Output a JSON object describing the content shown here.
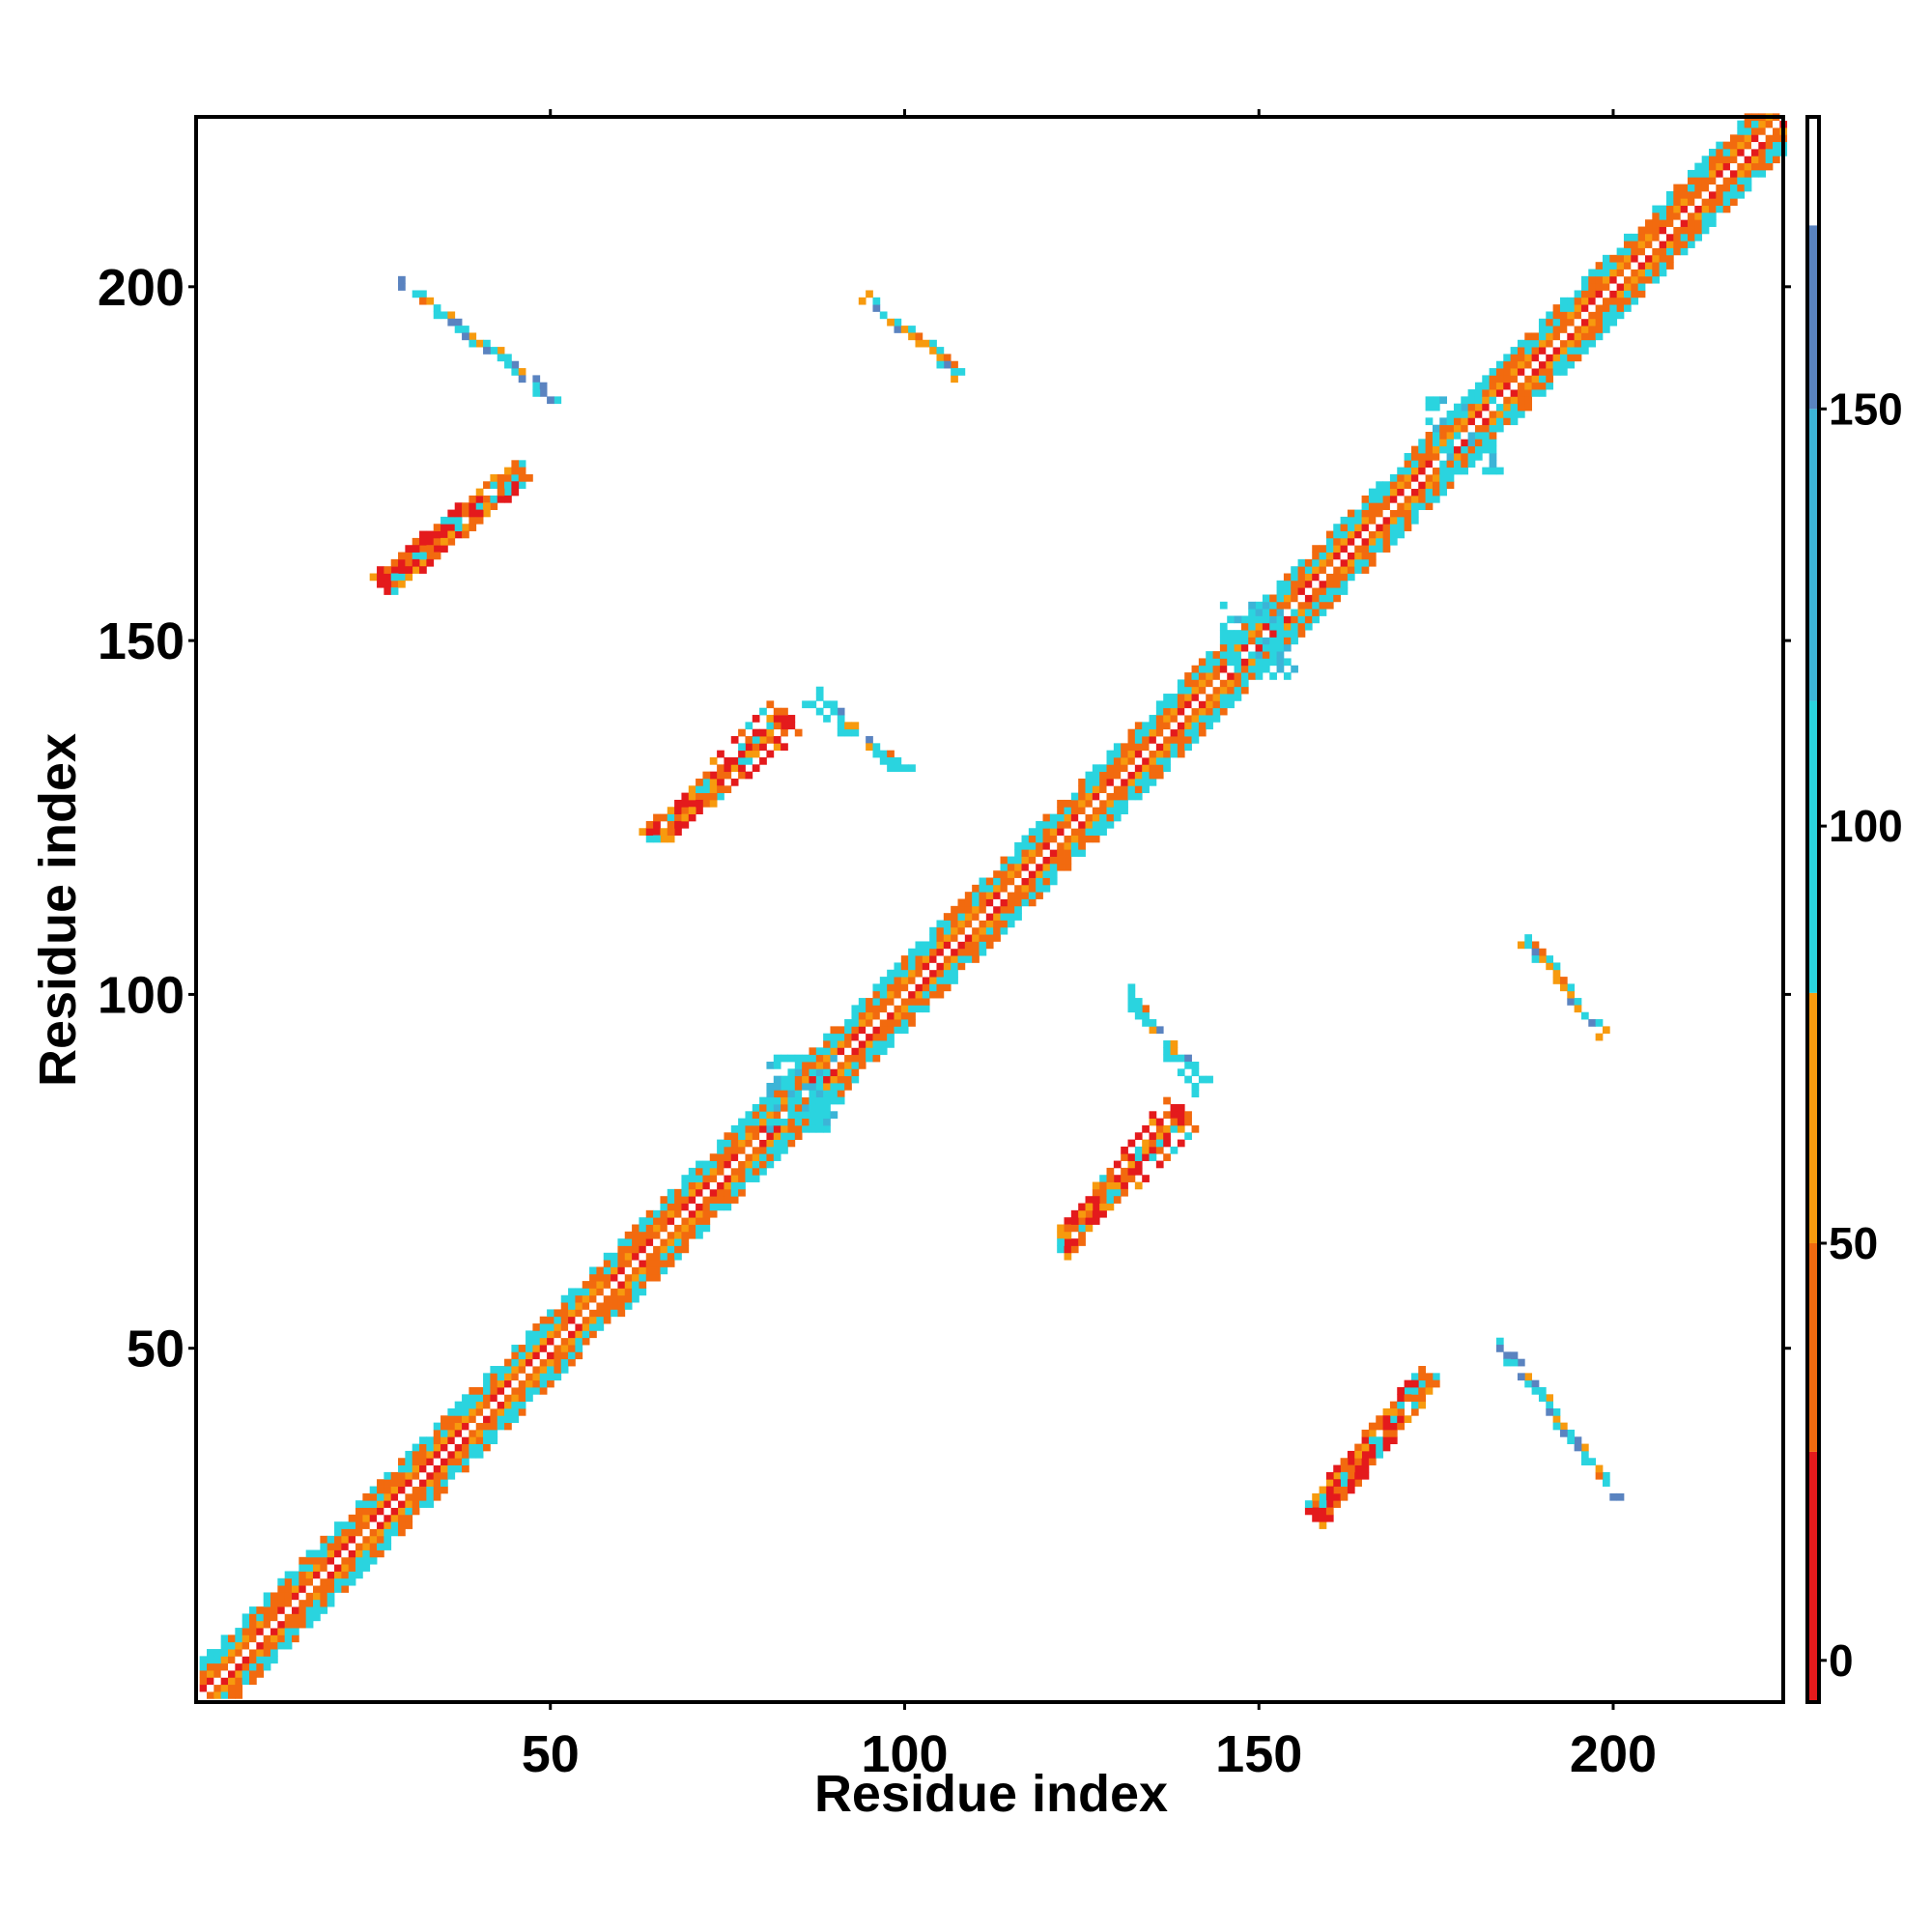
{
  "chart_data": {
    "type": "heatmap",
    "title": "",
    "xlabel": "Residue index",
    "ylabel": "Residue index",
    "xlim": [
      1,
      224
    ],
    "ylim": [
      1,
      224
    ],
    "x_ticks": [
      50,
      100,
      150,
      200
    ],
    "y_ticks": [
      50,
      100,
      150,
      200
    ],
    "x_tick_labels": [
      "50",
      "100",
      "150",
      "200"
    ],
    "y_tick_labels": [
      "50",
      "100",
      "150",
      "200"
    ],
    "colorbar": {
      "range": [
        -5,
        185
      ],
      "ticks": [
        0,
        50,
        100,
        150
      ],
      "tick_labels": [
        "0",
        "50",
        "100",
        "150"
      ],
      "segments": [
        {
          "from": -5,
          "to": 25,
          "color": "#e41a1c"
        },
        {
          "from": 25,
          "to": 50,
          "color": "#f26a0f"
        },
        {
          "from": 50,
          "to": 80,
          "color": "#f79a0e"
        },
        {
          "from": 80,
          "to": 115,
          "color": "#2ad4df"
        },
        {
          "from": 115,
          "to": 150,
          "color": "#3cb4d7"
        },
        {
          "from": 150,
          "to": 172,
          "color": "#5a83c0"
        },
        {
          "from": 172,
          "to": 185,
          "color": "#ffffff"
        }
      ]
    },
    "diagonal": {
      "start": 1,
      "end": 224,
      "band_width": 5,
      "special_regions": [
        {
          "center": 86,
          "type": "turn"
        },
        {
          "center": 150,
          "type": "turn"
        },
        {
          "center": 179,
          "type": "turn"
        }
      ]
    },
    "contact_strands": [
      {
        "x0": 26,
        "y0": 158,
        "x1": 46,
        "y1": 174,
        "kind": "parallel"
      },
      {
        "x0": 29,
        "y0": 200,
        "x1": 51,
        "y1": 184,
        "kind": "antiparallel"
      },
      {
        "x0": 64,
        "y0": 122,
        "x1": 84,
        "y1": 138,
        "kind": "parallel"
      },
      {
        "x0": 84,
        "y0": 142,
        "x1": 101,
        "y1": 131,
        "kind": "antiparallel"
      },
      {
        "x0": 94,
        "y0": 198,
        "x1": 108,
        "y1": 188,
        "kind": "antiparallel"
      },
      {
        "x0": 122,
        "y0": 65,
        "x1": 140,
        "y1": 82,
        "kind": "parallel"
      },
      {
        "x0": 131,
        "y0": 99,
        "x1": 142,
        "y1": 88,
        "kind": "antiparallel"
      },
      {
        "x0": 158,
        "y0": 27,
        "x1": 174,
        "y1": 46,
        "kind": "parallel"
      },
      {
        "x0": 183,
        "y0": 51,
        "x1": 200,
        "y1": 29,
        "kind": "antiparallel"
      },
      {
        "x0": 187,
        "y0": 107,
        "x1": 198,
        "y1": 95,
        "kind": "antiparallel"
      }
    ]
  }
}
